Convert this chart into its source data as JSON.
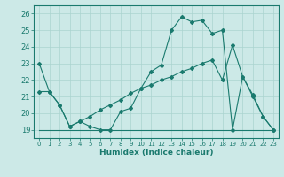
{
  "xlabel": "Humidex (Indice chaleur)",
  "background_color": "#cce9e7",
  "grid_color": "#aad4d0",
  "line_color": "#1a7a6e",
  "xlim": [
    -0.5,
    23.5
  ],
  "ylim": [
    18.5,
    26.5
  ],
  "yticks": [
    19,
    20,
    21,
    22,
    23,
    24,
    25,
    26
  ],
  "xticks": [
    0,
    1,
    2,
    3,
    4,
    5,
    6,
    7,
    8,
    9,
    10,
    11,
    12,
    13,
    14,
    15,
    16,
    17,
    18,
    19,
    20,
    21,
    22,
    23
  ],
  "line1_x": [
    0,
    1,
    2,
    3,
    4,
    5,
    6,
    7,
    8,
    9,
    10,
    11,
    12,
    13,
    14,
    15,
    16,
    17,
    18,
    19,
    20,
    21,
    22,
    23
  ],
  "line1_y": [
    23.0,
    21.3,
    20.5,
    19.2,
    19.5,
    19.2,
    19.0,
    19.0,
    20.1,
    20.3,
    21.5,
    22.5,
    22.9,
    25.0,
    25.8,
    25.5,
    25.6,
    24.8,
    25.0,
    19.0,
    22.2,
    21.1,
    19.8,
    19.0
  ],
  "line2_x": [
    0,
    1,
    2,
    3,
    4,
    5,
    6,
    7,
    8,
    9,
    10,
    11,
    12,
    13,
    14,
    15,
    16,
    17,
    18,
    19,
    20,
    21,
    22,
    23
  ],
  "line2_y": [
    19.0,
    19.0,
    19.0,
    19.0,
    19.0,
    19.0,
    19.0,
    19.0,
    19.0,
    19.0,
    19.0,
    19.0,
    19.0,
    19.0,
    19.0,
    19.0,
    19.0,
    19.0,
    19.0,
    19.0,
    19.0,
    19.0,
    19.0,
    19.0
  ],
  "line3_x": [
    0,
    1,
    2,
    3,
    4,
    5,
    6,
    7,
    8,
    9,
    10,
    11,
    12,
    13,
    14,
    15,
    16,
    17,
    18,
    19,
    20,
    21,
    22,
    23
  ],
  "line3_y": [
    21.3,
    21.3,
    20.5,
    19.2,
    19.5,
    19.8,
    20.2,
    20.5,
    20.8,
    21.2,
    21.5,
    21.7,
    22.0,
    22.2,
    22.5,
    22.7,
    23.0,
    23.2,
    22.0,
    24.1,
    22.2,
    21.0,
    19.8,
    19.0
  ]
}
